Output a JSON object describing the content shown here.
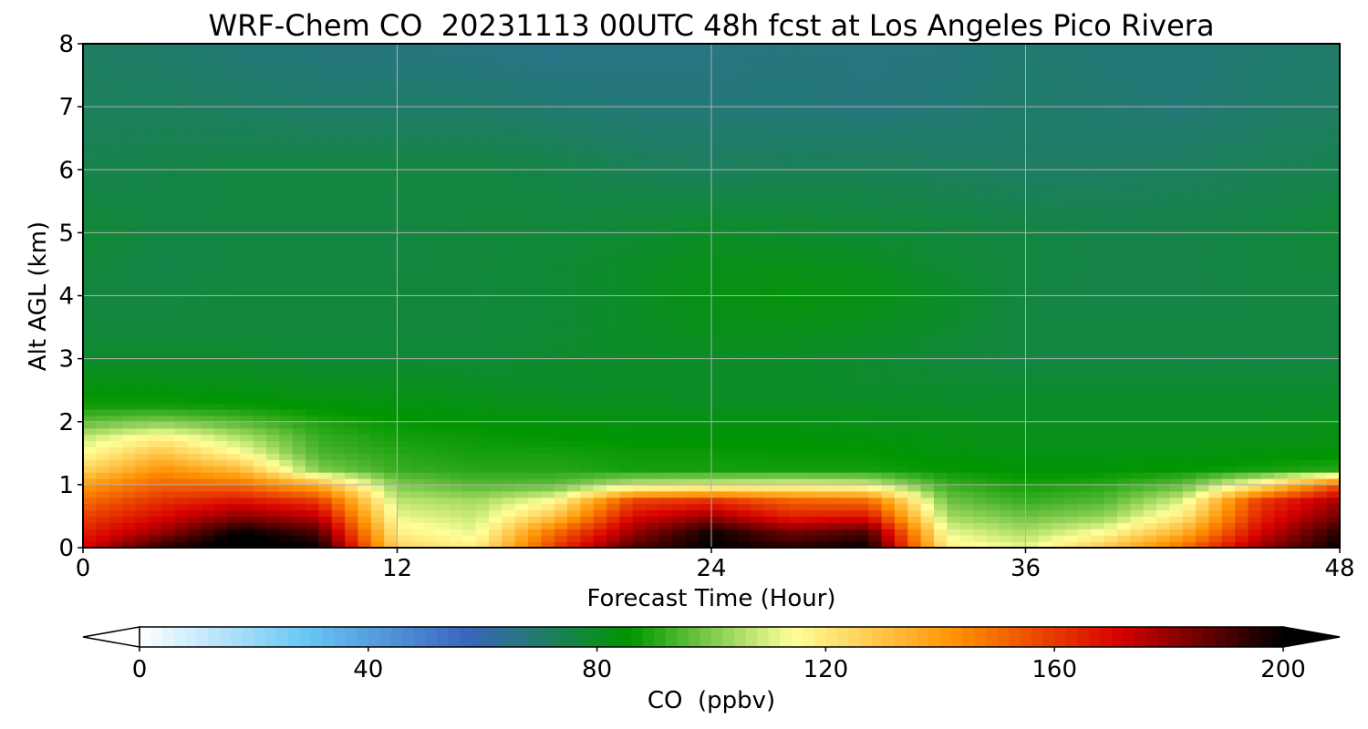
{
  "chart_data": {
    "type": "heatmap",
    "title": "WRF-Chem CO  20231113 00UTC 48h fcst at Los Angeles Pico Rivera",
    "xlabel": "Forecast Time (Hour)",
    "ylabel": "Alt AGL (km)",
    "xlim": [
      0,
      48
    ],
    "ylim": [
      0,
      8
    ],
    "x_ticks": [
      "0",
      "12",
      "24",
      "36",
      "48"
    ],
    "y_ticks": [
      "0",
      "1",
      "2",
      "3",
      "4",
      "5",
      "6",
      "7",
      "8"
    ],
    "grid": true,
    "x": [
      0,
      3,
      6,
      9,
      12,
      15,
      18,
      21,
      24,
      27,
      30,
      33,
      36,
      39,
      42,
      45,
      48
    ],
    "y": [
      0,
      0.25,
      0.5,
      0.75,
      1,
      1.25,
      1.5,
      1.75,
      2,
      2.25,
      2.5,
      3,
      3.5,
      4,
      4.5,
      5,
      6,
      7,
      8
    ],
    "z": [
      [
        170,
        195,
        205,
        200,
        125,
        118,
        160,
        190,
        200,
        195,
        200,
        118,
        112,
        128,
        150,
        180,
        200
      ],
      [
        165,
        180,
        200,
        190,
        118,
        112,
        150,
        180,
        198,
        185,
        190,
        112,
        105,
        115,
        135,
        172,
        195
      ],
      [
        158,
        170,
        182,
        175,
        112,
        108,
        130,
        170,
        180,
        165,
        168,
        104,
        98,
        102,
        120,
        165,
        185
      ],
      [
        150,
        162,
        168,
        160,
        107,
        104,
        115,
        158,
        162,
        152,
        150,
        98,
        92,
        95,
        110,
        160,
        178
      ],
      [
        140,
        152,
        150,
        135,
        100,
        95,
        96,
        108,
        110,
        112,
        110,
        92,
        88,
        90,
        96,
        120,
        155
      ],
      [
        125,
        142,
        132,
        100,
        92,
        90,
        90,
        88,
        88,
        88,
        88,
        86,
        85,
        85,
        86,
        88,
        90
      ],
      [
        115,
        130,
        115,
        94,
        90,
        88,
        88,
        87,
        87,
        86,
        86,
        84,
        83,
        83,
        83,
        84,
        85
      ],
      [
        108,
        118,
        106,
        92,
        88,
        87,
        86,
        85,
        85,
        85,
        84,
        83,
        82,
        82,
        82,
        82,
        83
      ],
      [
        96,
        100,
        95,
        89,
        86,
        85,
        84,
        83,
        83,
        83,
        82,
        82,
        81,
        81,
        81,
        81,
        82
      ],
      [
        88,
        88,
        87,
        85,
        84,
        83,
        82,
        82,
        81,
        81,
        81,
        80,
        80,
        80,
        80,
        80,
        80
      ],
      [
        84,
        84,
        83,
        82,
        82,
        81,
        80,
        80,
        80,
        80,
        79,
        79,
        79,
        79,
        79,
        79,
        79
      ],
      [
        79,
        79,
        79,
        78,
        78,
        78,
        79,
        80,
        80,
        80,
        79,
        77,
        76,
        76,
        76,
        76,
        76
      ],
      [
        77,
        77,
        77,
        77,
        77,
        77,
        78,
        80,
        82,
        82,
        81,
        79,
        76,
        76,
        76,
        76,
        76
      ],
      [
        76,
        76,
        77,
        77,
        77,
        77,
        78,
        80,
        83,
        84,
        83,
        80,
        76,
        75,
        75,
        76,
        76
      ],
      [
        77,
        75,
        76,
        76,
        76,
        77,
        78,
        80,
        82,
        82,
        81,
        78,
        76,
        75,
        75,
        76,
        77
      ],
      [
        78,
        76,
        76,
        76,
        76,
        77,
        77,
        78,
        80,
        79,
        78,
        77,
        76,
        75,
        75,
        76,
        78
      ],
      [
        74,
        75,
        76,
        76,
        76,
        76,
        75,
        73,
        72,
        73,
        73,
        72,
        71,
        71,
        72,
        73,
        74
      ],
      [
        72,
        72,
        71,
        70,
        70,
        70,
        69,
        68,
        68,
        68,
        67,
        68,
        70,
        69,
        68,
        70,
        71
      ],
      [
        71,
        70,
        68,
        67,
        67,
        66,
        65,
        66,
        66,
        67,
        67,
        67,
        69,
        68,
        68,
        69,
        70
      ]
    ],
    "colorbar": {
      "label": "CO  (ppbv)",
      "range": [
        0,
        200
      ],
      "ticks": [
        "0",
        "40",
        "80",
        "120",
        "160",
        "200"
      ],
      "extend": "both",
      "colors": [
        "#ffffff",
        "#6ac8f5",
        "#3a66c0",
        "#009600",
        "#ffff99",
        "#ff9100",
        "#d70000",
        "#000000"
      ]
    }
  }
}
